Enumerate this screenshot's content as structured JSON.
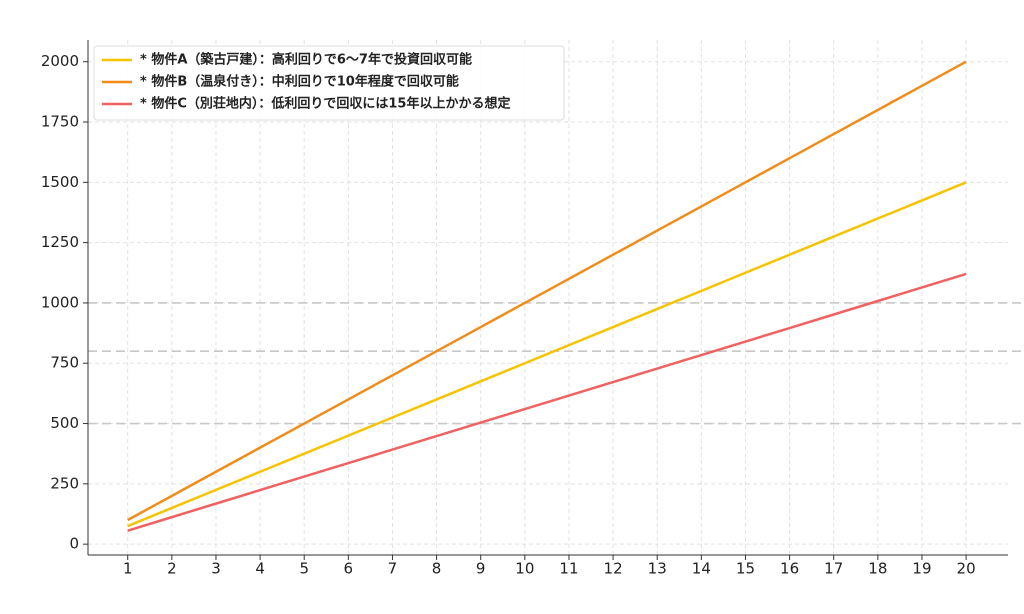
{
  "chart_data": {
    "type": "line",
    "x": [
      1,
      2,
      3,
      4,
      5,
      6,
      7,
      8,
      9,
      10,
      11,
      12,
      13,
      14,
      15,
      16,
      17,
      18,
      19,
      20
    ],
    "series": [
      {
        "name": "* 物件A（築古戸建）：高利回りで6〜7年で投資回収可能",
        "color": "#f5c400",
        "values": [
          75,
          150,
          225,
          300,
          375,
          450,
          525,
          600,
          675,
          750,
          825,
          900,
          975,
          1050,
          1125,
          1200,
          1275,
          1350,
          1425,
          1500
        ]
      },
      {
        "name": "* 物件B（温泉付き）：中利回りで10年程度で回収可能",
        "color": "#f08c1a",
        "values": [
          100,
          200,
          300,
          400,
          500,
          600,
          700,
          800,
          900,
          1000,
          1100,
          1200,
          1300,
          1400,
          1500,
          1600,
          1700,
          1800,
          1900,
          2000
        ]
      },
      {
        "name": "* 物件C（別荘地内）：低利回りで回収には15年以上かかる想定",
        "color": "#f06262",
        "values": [
          56,
          112,
          168,
          224,
          280,
          336,
          392,
          448,
          504,
          560,
          616,
          672,
          728,
          784,
          840,
          896,
          952,
          1008,
          1064,
          1120
        ]
      }
    ],
    "xlim": [
      0.1,
      20.95
    ],
    "xticks": [
      1,
      2,
      3,
      4,
      5,
      6,
      7,
      8,
      9,
      10,
      11,
      12,
      13,
      14,
      15,
      16,
      17,
      18,
      19,
      20
    ],
    "ylim": [
      -45,
      2090
    ],
    "yticks": [
      0,
      250,
      500,
      750,
      1000,
      1250,
      1500,
      1750,
      2000
    ],
    "reference_lines": [
      1000,
      800,
      500
    ],
    "grid": true,
    "legend": "upper left"
  }
}
